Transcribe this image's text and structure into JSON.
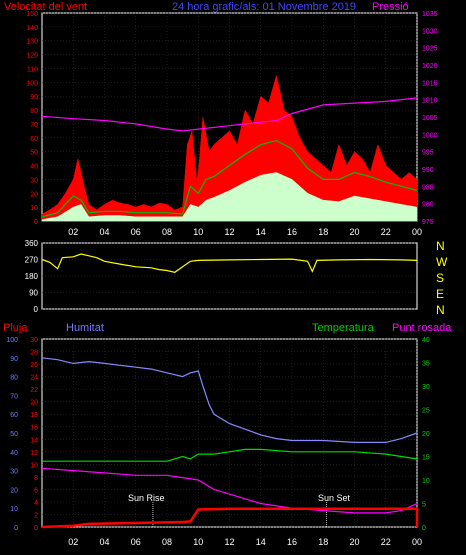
{
  "header": {
    "wind_label": "Velocitat del vent",
    "title": "24 hora grafic/als: 01 Novembre 2019",
    "pressure_label": "Pressió"
  },
  "lower_labels": {
    "rain": "Pluja",
    "humidity": "Humitat",
    "temperature": "Temperatura",
    "dewpoint": "Punt rosada"
  },
  "compass": [
    "N",
    "W",
    "S",
    "E",
    "N"
  ],
  "sun": {
    "rise": "Sun Rise",
    "set": "Sun Set"
  },
  "colors": {
    "wind": "#ff0000",
    "gust_green": "#00c000",
    "wind_avg": "#ccffcc",
    "pressure": "#ff00ff",
    "direction": "#ffff00",
    "rain": "#ff0000",
    "humidity": "#8888ff",
    "temperature": "#00dd00",
    "dewpoint": "#ff00ff",
    "axis_left": "#ff0000",
    "axis_right": "#ff00ff",
    "axis_humidity": "#7777ff",
    "axis_temp": "#00cc00"
  },
  "chart_data": [
    {
      "type": "area",
      "name": "wind",
      "x_ticks": [
        "02",
        "04",
        "06",
        "08",
        "10",
        "12",
        "14",
        "16",
        "18",
        "20",
        "22",
        "00"
      ],
      "y_left_ticks": [
        0,
        10,
        20,
        30,
        40,
        50,
        60,
        70,
        80,
        90,
        100,
        110,
        120,
        130,
        140,
        150
      ],
      "y_left_range": [
        0,
        150
      ],
      "y_right_ticks": [
        975,
        980,
        985,
        990,
        995,
        1000,
        1005,
        1010,
        1015,
        1020,
        1025,
        1030,
        1035
      ],
      "y_right_range": [
        975,
        1035
      ],
      "x_range_hours": [
        0,
        24
      ],
      "gust_points": [
        [
          0,
          5
        ],
        [
          0.5,
          8
        ],
        [
          1,
          12
        ],
        [
          1.5,
          20
        ],
        [
          2,
          30
        ],
        [
          2.3,
          45
        ],
        [
          2.7,
          25
        ],
        [
          3,
          12
        ],
        [
          3.5,
          8
        ],
        [
          4,
          12
        ],
        [
          4.5,
          15
        ],
        [
          5,
          13
        ],
        [
          5.5,
          12
        ],
        [
          6,
          10
        ],
        [
          6.5,
          12
        ],
        [
          7,
          10
        ],
        [
          7.5,
          13
        ],
        [
          8,
          12
        ],
        [
          8.5,
          8
        ],
        [
          9,
          10
        ],
        [
          9.3,
          55
        ],
        [
          9.6,
          65
        ],
        [
          9.9,
          30
        ],
        [
          10,
          35
        ],
        [
          10.3,
          75
        ],
        [
          10.7,
          50
        ],
        [
          11,
          55
        ],
        [
          11.5,
          60
        ],
        [
          12,
          65
        ],
        [
          12.5,
          55
        ],
        [
          13,
          80
        ],
        [
          13.5,
          70
        ],
        [
          14,
          90
        ],
        [
          14.5,
          85
        ],
        [
          15,
          105
        ],
        [
          15.5,
          80
        ],
        [
          16,
          75
        ],
        [
          16.5,
          60
        ],
        [
          17,
          50
        ],
        [
          17.5,
          45
        ],
        [
          18,
          40
        ],
        [
          18.5,
          35
        ],
        [
          19,
          55
        ],
        [
          19.5,
          40
        ],
        [
          20,
          50
        ],
        [
          20.5,
          45
        ],
        [
          21,
          35
        ],
        [
          21.5,
          55
        ],
        [
          22,
          40
        ],
        [
          22.5,
          35
        ],
        [
          23,
          30
        ],
        [
          23.5,
          35
        ],
        [
          24,
          30
        ]
      ],
      "green_points": [
        [
          0,
          3
        ],
        [
          1,
          6
        ],
        [
          2,
          18
        ],
        [
          2.5,
          15
        ],
        [
          3,
          6
        ],
        [
          4,
          7
        ],
        [
          5,
          7
        ],
        [
          6,
          6
        ],
        [
          7,
          6
        ],
        [
          8,
          6
        ],
        [
          9,
          5
        ],
        [
          9.5,
          25
        ],
        [
          10,
          20
        ],
        [
          10.5,
          30
        ],
        [
          11,
          32
        ],
        [
          12,
          40
        ],
        [
          13,
          48
        ],
        [
          14,
          55
        ],
        [
          15,
          58
        ],
        [
          16,
          52
        ],
        [
          17,
          38
        ],
        [
          18,
          30
        ],
        [
          19,
          30
        ],
        [
          20,
          35
        ],
        [
          21,
          32
        ],
        [
          22,
          28
        ],
        [
          23,
          25
        ],
        [
          24,
          22
        ]
      ],
      "avg_points": [
        [
          0,
          1
        ],
        [
          1,
          3
        ],
        [
          2,
          10
        ],
        [
          2.5,
          12
        ],
        [
          3,
          3
        ],
        [
          4,
          4
        ],
        [
          5,
          4
        ],
        [
          6,
          3
        ],
        [
          7,
          3
        ],
        [
          8,
          3
        ],
        [
          9,
          3
        ],
        [
          9.5,
          12
        ],
        [
          10,
          10
        ],
        [
          10.5,
          15
        ],
        [
          11,
          17
        ],
        [
          12,
          22
        ],
        [
          13,
          28
        ],
        [
          14,
          33
        ],
        [
          15,
          35
        ],
        [
          16,
          30
        ],
        [
          17,
          20
        ],
        [
          18,
          15
        ],
        [
          19,
          14
        ],
        [
          20,
          18
        ],
        [
          21,
          16
        ],
        [
          22,
          14
        ],
        [
          23,
          12
        ],
        [
          24,
          10
        ]
      ],
      "pressure_points": [
        [
          0,
          1005.2
        ],
        [
          2,
          1004.5
        ],
        [
          4,
          1004
        ],
        [
          6,
          1003
        ],
        [
          8,
          1001.5
        ],
        [
          9,
          1001
        ],
        [
          10,
          1001.5
        ],
        [
          12,
          1002.5
        ],
        [
          14,
          1003.5
        ],
        [
          15,
          1004
        ],
        [
          16,
          1006
        ],
        [
          18,
          1008.5
        ],
        [
          20,
          1009
        ],
        [
          22,
          1009.5
        ],
        [
          24,
          1010.5
        ]
      ]
    },
    {
      "type": "line",
      "name": "wind_direction",
      "y_ticks": [
        0,
        90,
        180,
        270,
        360
      ],
      "y_range": [
        0,
        360
      ],
      "points": [
        [
          0,
          270
        ],
        [
          0.5,
          255
        ],
        [
          1,
          220
        ],
        [
          1.3,
          280
        ],
        [
          2,
          285
        ],
        [
          2.5,
          300
        ],
        [
          3,
          290
        ],
        [
          3.5,
          280
        ],
        [
          4,
          260
        ],
        [
          5,
          245
        ],
        [
          6,
          230
        ],
        [
          7,
          225
        ],
        [
          7.5,
          215
        ],
        [
          8,
          210
        ],
        [
          8.5,
          200
        ],
        [
          9,
          230
        ],
        [
          9.5,
          260
        ],
        [
          10,
          265
        ],
        [
          12,
          268
        ],
        [
          14,
          270
        ],
        [
          16,
          272
        ],
        [
          17,
          260
        ],
        [
          17.3,
          205
        ],
        [
          17.6,
          265
        ],
        [
          19,
          268
        ],
        [
          21,
          270
        ],
        [
          23,
          268
        ],
        [
          24,
          265
        ]
      ]
    },
    {
      "type": "line",
      "name": "lower",
      "y_rain_ticks": [
        0,
        2,
        4,
        6,
        8,
        10,
        12,
        14,
        16,
        18,
        20,
        22,
        24,
        26,
        28,
        30
      ],
      "y_rain_range": [
        0,
        30
      ],
      "y_humidity_ticks": [
        0,
        10,
        20,
        30,
        40,
        50,
        60,
        70,
        80,
        90,
        100
      ],
      "y_humidity_range": [
        0,
        100
      ],
      "y_temp_ticks": [
        0,
        5,
        10,
        15,
        20,
        25,
        30,
        35,
        40
      ],
      "y_temp_range": [
        0,
        40
      ],
      "rain_points": [
        [
          0,
          0
        ],
        [
          2,
          0.2
        ],
        [
          3,
          0.5
        ],
        [
          5,
          0.6
        ],
        [
          7,
          0.7
        ],
        [
          9,
          0.8
        ],
        [
          9.5,
          0.9
        ],
        [
          10,
          2.8
        ],
        [
          12,
          2.9
        ],
        [
          20,
          2.9
        ],
        [
          24,
          2.9
        ],
        [
          24,
          0
        ]
      ],
      "humidity_points": [
        [
          0,
          90
        ],
        [
          1,
          89
        ],
        [
          2,
          87
        ],
        [
          3,
          88
        ],
        [
          4,
          87
        ],
        [
          5,
          86
        ],
        [
          6,
          85
        ],
        [
          7,
          84
        ],
        [
          8,
          82
        ],
        [
          9,
          80
        ],
        [
          9.5,
          82
        ],
        [
          10,
          83
        ],
        [
          10.3,
          75
        ],
        [
          10.7,
          65
        ],
        [
          11,
          60
        ],
        [
          12,
          55
        ],
        [
          13,
          52
        ],
        [
          14,
          49
        ],
        [
          15,
          47
        ],
        [
          16,
          46
        ],
        [
          18,
          46
        ],
        [
          20,
          45
        ],
        [
          22,
          45
        ],
        [
          23,
          47
        ],
        [
          24,
          50
        ]
      ],
      "temp_points": [
        [
          0,
          14
        ],
        [
          2,
          14
        ],
        [
          4,
          14
        ],
        [
          6,
          14
        ],
        [
          8,
          14
        ],
        [
          9,
          15
        ],
        [
          9.5,
          14.5
        ],
        [
          10,
          15.5
        ],
        [
          11,
          15.5
        ],
        [
          12,
          16
        ],
        [
          13,
          16.5
        ],
        [
          14,
          16.5
        ],
        [
          16,
          16
        ],
        [
          18,
          16
        ],
        [
          20,
          16
        ],
        [
          22,
          15.5
        ],
        [
          24,
          14.5
        ]
      ],
      "dew_points": [
        [
          0,
          12.5
        ],
        [
          2,
          12
        ],
        [
          4,
          11.5
        ],
        [
          6,
          11
        ],
        [
          8,
          11
        ],
        [
          9,
          10.5
        ],
        [
          10,
          10
        ],
        [
          11,
          8
        ],
        [
          12,
          7
        ],
        [
          13,
          6
        ],
        [
          14,
          5
        ],
        [
          15,
          4.5
        ],
        [
          16,
          4
        ],
        [
          18,
          3.5
        ],
        [
          20,
          3
        ],
        [
          22,
          3
        ],
        [
          23,
          3.5
        ],
        [
          24,
          5
        ]
      ],
      "sun_rise_hour": 7.1,
      "sun_set_hour": 18.2
    }
  ]
}
